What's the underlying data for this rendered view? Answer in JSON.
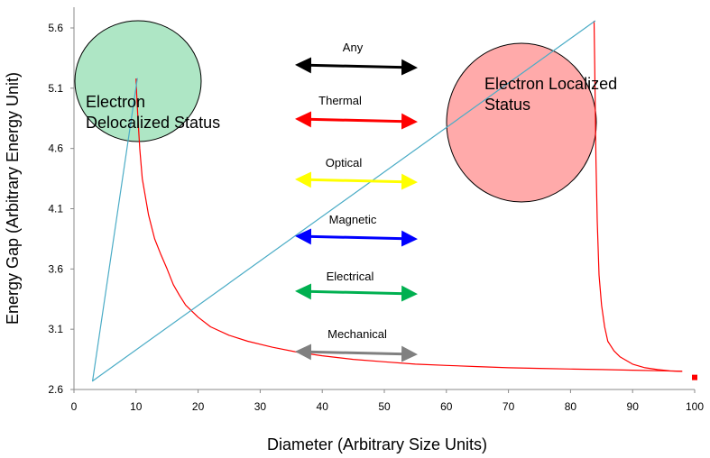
{
  "chart_data": {
    "type": "line",
    "xlabel": "Diameter (Arbitrary Size Units)",
    "ylabel": "Energy Gap (Arbitrary Energy Unit)",
    "xlim": [
      0,
      100
    ],
    "ylim": [
      2.6,
      5.8
    ],
    "x_ticks": [
      "0",
      "10",
      "20",
      "30",
      "40",
      "50",
      "60",
      "70",
      "80",
      "90",
      "100"
    ],
    "y_ticks": [
      "2.6",
      "3.1",
      "3.6",
      "4.1",
      "4.6",
      "5.1",
      "5.6"
    ],
    "grid": false,
    "series": [
      {
        "color": "#ff0000",
        "x": [
          10.0,
          10.1,
          10.3,
          10.6,
          11,
          12,
          13,
          14,
          15,
          16,
          17,
          18,
          20,
          22,
          25,
          28,
          32,
          36,
          40,
          45,
          50,
          55,
          60,
          65,
          70,
          75,
          80,
          85,
          90,
          95,
          98
        ],
        "y": [
          5.18,
          5.05,
          4.85,
          4.6,
          4.35,
          4.05,
          3.85,
          3.72,
          3.6,
          3.47,
          3.38,
          3.3,
          3.2,
          3.12,
          3.05,
          3.0,
          2.95,
          2.91,
          2.88,
          2.85,
          2.83,
          2.81,
          2.8,
          2.79,
          2.78,
          2.775,
          2.77,
          2.765,
          2.76,
          2.755,
          2.75
        ]
      },
      {
        "color": "#ff0000",
        "x": [
          83.8,
          83.9,
          84.0,
          84.1,
          84.3,
          84.6,
          85.0,
          85.5,
          86,
          87,
          88,
          89,
          90,
          92,
          94,
          96,
          98
        ],
        "y": [
          5.66,
          5.3,
          4.9,
          4.5,
          4.0,
          3.55,
          3.3,
          3.12,
          3.0,
          2.92,
          2.87,
          2.84,
          2.81,
          2.78,
          2.765,
          2.755,
          2.75
        ]
      },
      {
        "color": "#4bacc6",
        "x": [
          3,
          10.2,
          10.2,
          3,
          84,
          84
        ],
        "y": [
          2.67,
          5.18,
          5.18,
          2.67,
          5.66,
          5.66
        ]
      }
    ],
    "marker": {
      "x": 100,
      "y": 2.7,
      "color": "#ff0000"
    },
    "circles": [
      {
        "label_lines": [
          "Electron",
          "Delocalized Status"
        ],
        "fill": "#aee6c5"
      },
      {
        "label_lines": [
          "Electron Localized",
          "Status"
        ],
        "fill": "#ffaaaa"
      }
    ],
    "arrows": [
      {
        "label": "Any",
        "color": "#000000"
      },
      {
        "label": "Thermal",
        "color": "#ff0000"
      },
      {
        "label": "Optical",
        "color": "#ffff00"
      },
      {
        "label": "Magnetic",
        "color": "#0000ff"
      },
      {
        "label": "Electrical",
        "color": "#00b050"
      },
      {
        "label": "Mechanical",
        "color": "#808080"
      }
    ]
  }
}
